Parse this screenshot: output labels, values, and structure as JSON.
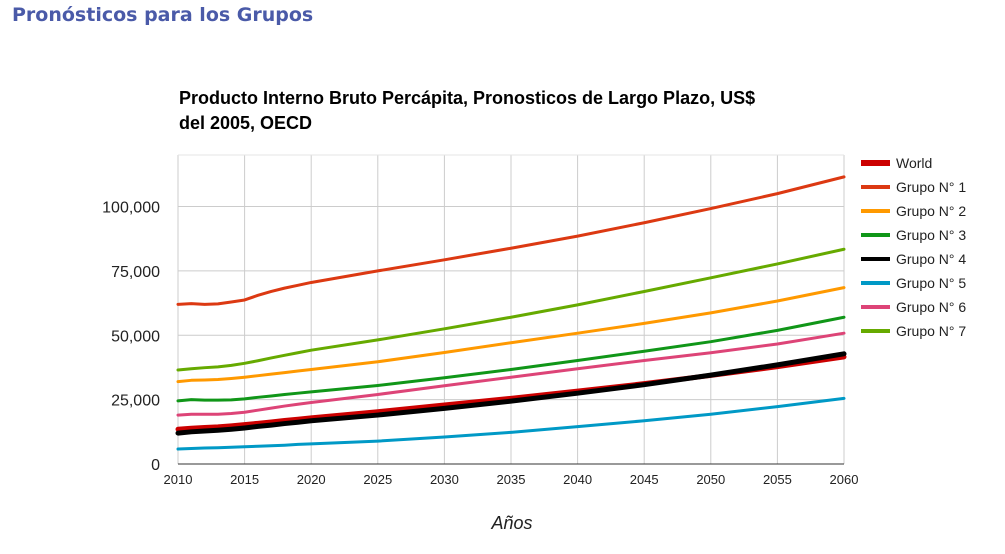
{
  "page": {
    "heading": "Pronósticos para los Grupos",
    "heading_color": "#4a5aa8"
  },
  "chart_data": {
    "type": "line",
    "title_lines": [
      "Producto Interno Bruto Percápita, Pronosticos de Largo Plazo, US$",
      "del 2005, OECD"
    ],
    "xlabel": "Años",
    "ylabel": "",
    "xlim": [
      2010,
      2060
    ],
    "ylim": [
      0,
      120000
    ],
    "x_ticks": [
      2010,
      2015,
      2020,
      2025,
      2030,
      2035,
      2040,
      2045,
      2050,
      2055,
      2060
    ],
    "y_ticks": [
      0,
      25000,
      50000,
      75000,
      100000
    ],
    "y_tick_labels": [
      "0",
      "25,000",
      "50,000",
      "75,000",
      "100,000"
    ],
    "grid": true,
    "legend_position": "right",
    "x": [
      2010,
      2011,
      2012,
      2013,
      2014,
      2015,
      2016,
      2017,
      2018,
      2019,
      2020,
      2025,
      2030,
      2035,
      2040,
      2045,
      2050,
      2055,
      2060
    ],
    "series": [
      {
        "name": "World",
        "color": "#cc0000",
        "width": 5,
        "values": [
          13500,
          13900,
          14200,
          14400,
          14800,
          15300,
          15800,
          16300,
          16900,
          17400,
          17900,
          20300,
          22900,
          25500,
          28300,
          31200,
          34400,
          37800,
          41600
        ]
      },
      {
        "name": "Grupo N° 1",
        "color": "#dc3912",
        "width": 3,
        "values": [
          62000,
          62300,
          62000,
          62200,
          62900,
          63700,
          65500,
          67000,
          68300,
          69400,
          70500,
          75000,
          79300,
          83800,
          88500,
          93700,
          99200,
          105000,
          111500
        ]
      },
      {
        "name": "Grupo N° 2",
        "color": "#ff9900",
        "width": 3,
        "values": [
          32000,
          32500,
          32600,
          32800,
          33200,
          33700,
          34300,
          34900,
          35500,
          36100,
          36700,
          39700,
          43300,
          47100,
          50800,
          54600,
          58700,
          63300,
          68500
        ]
      },
      {
        "name": "Grupo N° 3",
        "color": "#109618",
        "width": 3,
        "values": [
          24500,
          25000,
          24800,
          24800,
          24900,
          25300,
          25900,
          26400,
          27000,
          27500,
          28000,
          30500,
          33500,
          36700,
          40200,
          43800,
          47500,
          51900,
          57000
        ]
      },
      {
        "name": "Grupo N° 4",
        "color": "#000000",
        "width": 5,
        "values": [
          12000,
          12500,
          12800,
          13100,
          13500,
          14000,
          14600,
          15100,
          15700,
          16200,
          16800,
          19000,
          21600,
          24400,
          27500,
          30800,
          34500,
          38500,
          42800
        ]
      },
      {
        "name": "Grupo N° 5",
        "color": "#0099c6",
        "width": 3,
        "values": [
          5800,
          6000,
          6200,
          6300,
          6500,
          6700,
          6900,
          7100,
          7300,
          7600,
          7800,
          8900,
          10500,
          12300,
          14500,
          16800,
          19300,
          22300,
          25500
        ]
      },
      {
        "name": "Grupo N° 6",
        "color": "#dd4477",
        "width": 3,
        "values": [
          19000,
          19300,
          19300,
          19300,
          19600,
          20100,
          20900,
          21700,
          22500,
          23200,
          23900,
          27000,
          30400,
          33700,
          37000,
          40200,
          43200,
          46600,
          50800
        ]
      },
      {
        "name": "Grupo N° 7",
        "color": "#66aa00",
        "width": 3,
        "values": [
          36500,
          37000,
          37400,
          37700,
          38300,
          39100,
          40100,
          41200,
          42200,
          43200,
          44200,
          48200,
          52500,
          57000,
          61800,
          67000,
          72300,
          77700,
          83400
        ]
      }
    ]
  }
}
